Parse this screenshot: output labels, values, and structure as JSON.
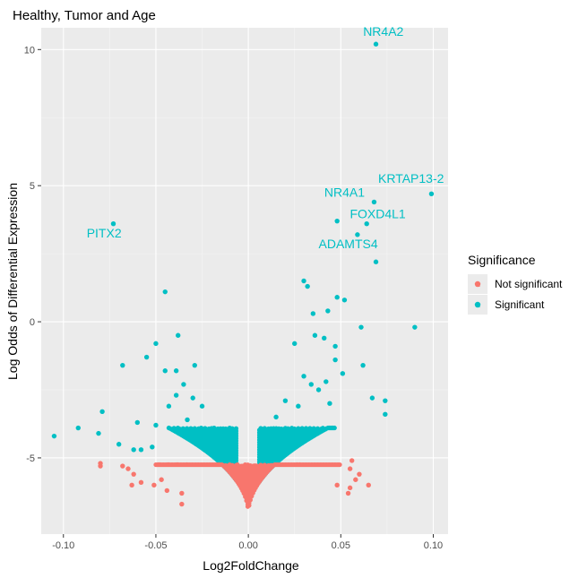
{
  "colors": {
    "not_significant": "#F8766D",
    "significant": "#00BFC4",
    "panel_bg": "#EBEBEB",
    "grid_major": "#FFFFFF",
    "grid_minor": "#F5F5F5"
  },
  "chart_data": {
    "type": "scatter",
    "title": "Healthy, Tumor and Age",
    "xlabel": "Log2FoldChange",
    "ylabel": "Log Odds of Differential Expression",
    "xlim": [
      -0.112,
      0.108
    ],
    "ylim": [
      -7.8,
      10.8
    ],
    "x_ticks": [
      -0.1,
      -0.05,
      0.0,
      0.05,
      0.1
    ],
    "x_tick_labels": [
      "-0.10",
      "-0.05",
      "0.00",
      "0.05",
      "0.10"
    ],
    "y_ticks": [
      -5,
      0,
      5,
      10
    ],
    "y_tick_labels": [
      "-5",
      "0",
      "5",
      "10"
    ],
    "grid": true,
    "legend": {
      "title": "Significance",
      "placement": "right",
      "entries": [
        {
          "label": "Not significant",
          "color": "#F8766D",
          "key_letter": "a"
        },
        {
          "label": "Significant",
          "color": "#00BFC4",
          "key_letter": "a"
        }
      ]
    },
    "labeled_points": [
      {
        "label": "NR4A2",
        "x": 0.069,
        "y": 10.2,
        "label_x": 0.073,
        "label_y": 10.5
      },
      {
        "label": "KRTAP13-2",
        "x": 0.099,
        "y": 4.7,
        "label_x": 0.088,
        "label_y": 5.1
      },
      {
        "label": "NR4A1",
        "x": 0.068,
        "y": 4.4,
        "label_x": 0.052,
        "label_y": 4.6
      },
      {
        "label": "FOXD4L1",
        "x": 0.064,
        "y": 3.6,
        "label_x": 0.07,
        "label_y": 3.8
      },
      {
        "label": "PITX2",
        "x": -0.073,
        "y": 3.6,
        "label_x": -0.078,
        "label_y": 3.1
      },
      {
        "label": "ADAMTS4",
        "x": 0.069,
        "y": 2.2,
        "label_x": 0.054,
        "label_y": 2.7
      }
    ],
    "series": [
      {
        "name": "Significant",
        "points": [
          [
            0.069,
            10.2
          ],
          [
            0.099,
            4.7
          ],
          [
            0.068,
            4.4
          ],
          [
            0.064,
            3.6
          ],
          [
            0.059,
            3.2
          ],
          [
            0.048,
            3.7
          ],
          [
            -0.073,
            3.6
          ],
          [
            0.069,
            2.2
          ],
          [
            -0.045,
            1.1
          ],
          [
            0.03,
            1.5
          ],
          [
            0.032,
            1.3
          ],
          [
            0.048,
            0.9
          ],
          [
            0.052,
            0.8
          ],
          [
            0.035,
            0.3
          ],
          [
            0.043,
            0.4
          ],
          [
            0.09,
            -0.2
          ],
          [
            0.061,
            -0.2
          ],
          [
            -0.05,
            -0.8
          ],
          [
            0.036,
            -0.5
          ],
          [
            0.025,
            -0.8
          ],
          [
            0.041,
            -0.6
          ],
          [
            0.047,
            -0.9
          ],
          [
            -0.038,
            -0.5
          ],
          [
            -0.055,
            -1.3
          ],
          [
            -0.068,
            -1.6
          ],
          [
            -0.045,
            -1.8
          ],
          [
            -0.029,
            -1.6
          ],
          [
            -0.039,
            -1.8
          ],
          [
            0.047,
            -1.4
          ],
          [
            0.051,
            -1.9
          ],
          [
            0.062,
            -1.6
          ],
          [
            0.067,
            -2.8
          ],
          [
            0.074,
            -2.9
          ],
          [
            0.074,
            -3.4
          ],
          [
            -0.079,
            -3.3
          ],
          [
            -0.092,
            -3.9
          ],
          [
            -0.105,
            -4.2
          ],
          [
            -0.081,
            -4.1
          ],
          [
            -0.06,
            -3.7
          ],
          [
            -0.05,
            -3.8
          ],
          [
            -0.07,
            -4.5
          ],
          [
            -0.058,
            -4.7
          ],
          [
            -0.062,
            -4.7
          ],
          [
            -0.052,
            -4.6
          ],
          [
            0.015,
            -3.5
          ],
          [
            0.02,
            -2.9
          ],
          [
            0.027,
            -3.1
          ],
          [
            0.034,
            -2.3
          ],
          [
            0.038,
            -2.5
          ],
          [
            0.042,
            -2.2
          ],
          [
            0.03,
            -2.0
          ],
          [
            0.044,
            -3.0
          ],
          [
            -0.025,
            -3.1
          ],
          [
            -0.03,
            -2.8
          ],
          [
            -0.035,
            -2.3
          ],
          [
            -0.039,
            -2.7
          ],
          [
            -0.033,
            -3.6
          ],
          [
            -0.043,
            -3.1
          ],
          [
            -0.02,
            -4.0
          ]
        ]
      },
      {
        "name": "Not significant",
        "points": [
          [
            -0.08,
            -5.2
          ],
          [
            -0.08,
            -5.3
          ],
          [
            -0.068,
            -5.3
          ],
          [
            -0.065,
            -5.4
          ],
          [
            -0.063,
            -6.0
          ],
          [
            -0.058,
            -5.9
          ],
          [
            -0.062,
            -5.6
          ],
          [
            -0.051,
            -6.0
          ],
          [
            -0.047,
            -5.8
          ],
          [
            -0.044,
            -6.2
          ],
          [
            -0.036,
            -6.7
          ],
          [
            -0.036,
            -6.3
          ],
          [
            0.055,
            -5.4
          ],
          [
            0.058,
            -5.8
          ],
          [
            0.06,
            -5.6
          ],
          [
            0.065,
            -6.0
          ],
          [
            0.055,
            -6.1
          ],
          [
            0.054,
            -6.3
          ],
          [
            0.048,
            -6.0
          ],
          [
            0.056,
            -5.1
          ]
        ]
      }
    ]
  }
}
